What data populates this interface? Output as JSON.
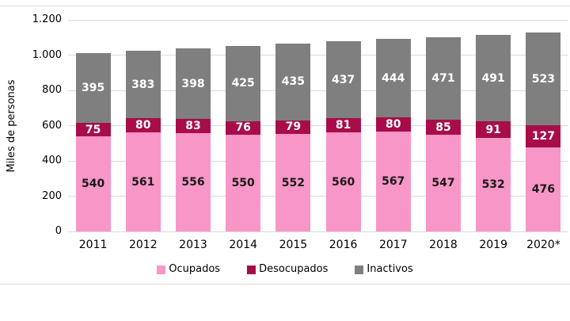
{
  "chart_data": {
    "type": "bar",
    "stacked": true,
    "title": "",
    "ylabel": "Miles de personas",
    "xlabel": "",
    "categories": [
      "2011",
      "2012",
      "2013",
      "2014",
      "2015",
      "2016",
      "2017",
      "2018",
      "2019",
      "2020*"
    ],
    "series": [
      {
        "name": "Ocupados",
        "color": "#F896C7",
        "label_color": "#1a1a1a",
        "values": [
          540,
          561,
          556,
          550,
          552,
          560,
          567,
          547,
          532,
          476
        ]
      },
      {
        "name": "Desocupados",
        "color": "#A80D4A",
        "label_color": "#ffffff",
        "values": [
          75,
          80,
          83,
          76,
          79,
          81,
          80,
          85,
          91,
          127
        ]
      },
      {
        "name": "Inactivos",
        "color": "#7F7F7F",
        "label_color": "#ffffff",
        "values": [
          395,
          383,
          398,
          425,
          435,
          437,
          444,
          471,
          491,
          523
        ]
      }
    ],
    "ylim": [
      0,
      1200
    ],
    "ytick_step": 200,
    "ytick_labels": [
      "0",
      "200",
      "400",
      "600",
      "800",
      "1.000",
      "1.200"
    ],
    "grid": true,
    "legend_position": "bottom",
    "colors": {
      "gridline": "#d9d9d9",
      "frame_line": "#dcdcdc",
      "background": "#ffffff"
    }
  }
}
